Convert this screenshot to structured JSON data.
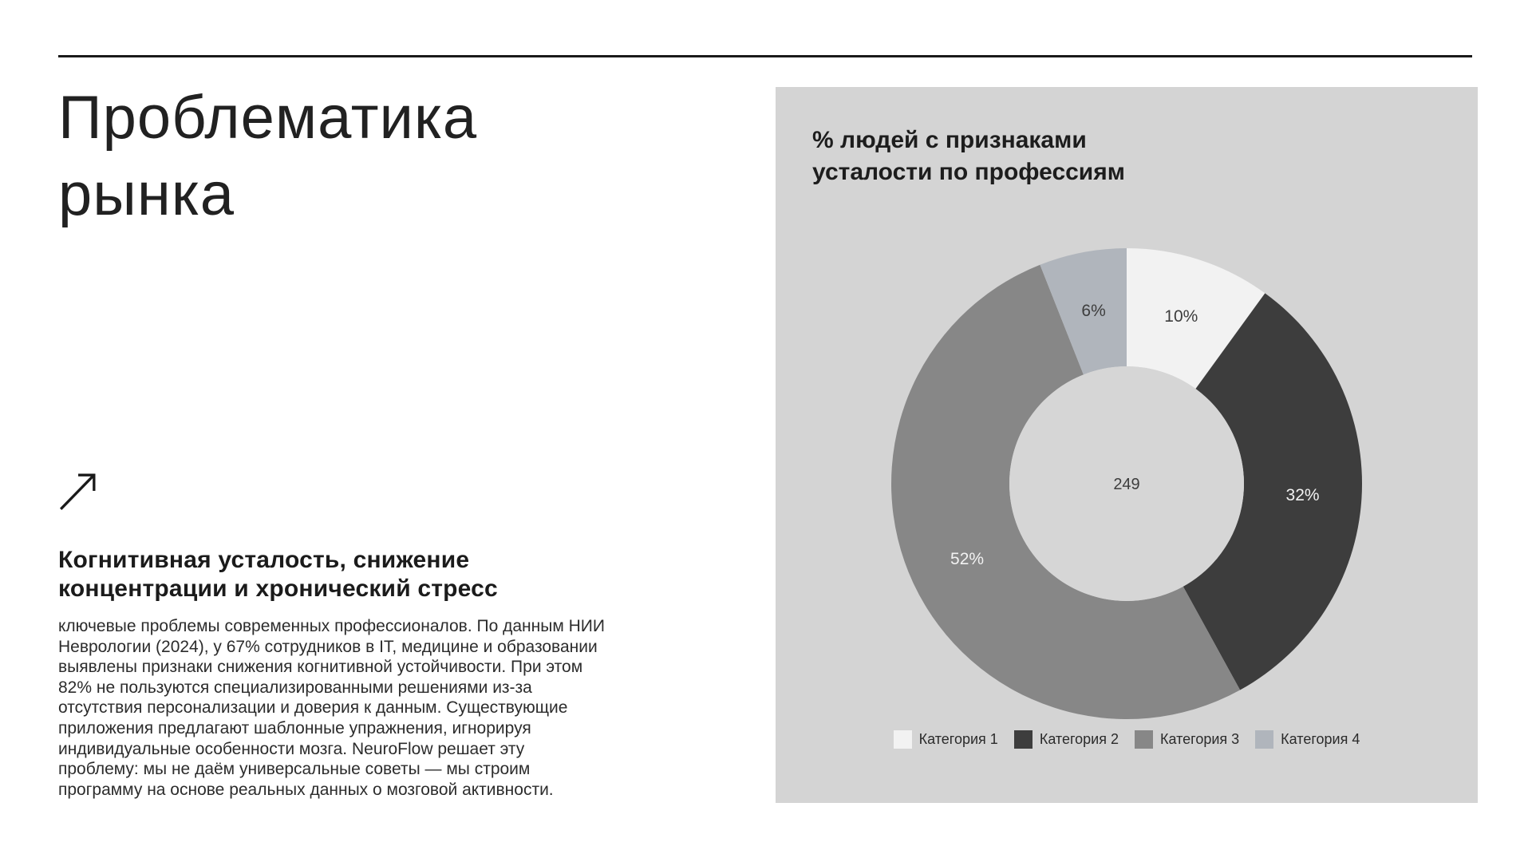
{
  "left": {
    "title": "Проблематика рынка",
    "heading": "Когнитивная усталость, снижение концентрации и хронический стресс",
    "body_lines": [
      "ключевые проблемы современных профессионалов. По данным НИИ",
      "Неврологии (2024), у 67% сотрудников в IT, медицине и образовании",
      "выявлены признаки снижения когнитивной устойчивости. При этом",
      "82% не пользуются специализированными решениями из-за",
      "отсутствия персонализации и доверия к данным. Существующие",
      "приложения предлагают шаблонные упражнения, игнорируя",
      "индивидуальные особенности мозга. NeuroFlow решает эту",
      "проблему: мы не даём универсальные советы — мы строим",
      "программу на основе реальных данных о мозговой активности."
    ]
  },
  "chart": {
    "title": "% людей с признаками усталости по профессиям"
  },
  "chart_data": {
    "type": "pie",
    "subtype": "donut",
    "title": "% людей с признаками усталости по профессиям",
    "categories": [
      "Категория 1",
      "Категория 2",
      "Категория 3",
      "Категория 4"
    ],
    "values": [
      10,
      32,
      52,
      6
    ],
    "unit": "%",
    "center_label": "249",
    "colors": [
      "#f2f2f2",
      "#3d3d3d",
      "#878787",
      "#b0b5bc"
    ],
    "label_colors": [
      "#3d3d3d",
      "#f2f2f2",
      "#f2f2f2",
      "#3d3d3d"
    ],
    "hole_color": "#d6d6d6",
    "legend_position": "bottom",
    "start_angle_deg": 0,
    "direction": "clockwise"
  },
  "style_colors": {
    "panel_bg": "#d4d4d4",
    "rule": "#1a1a1a",
    "title_text": "#212121"
  }
}
